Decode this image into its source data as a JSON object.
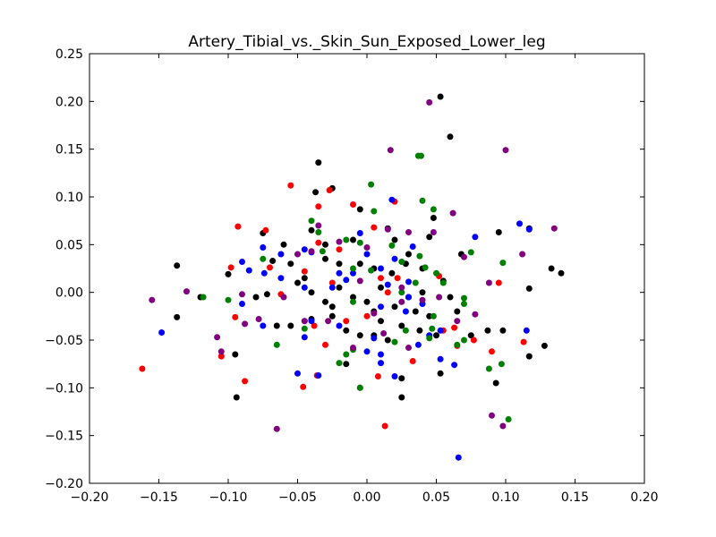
{
  "chart_data": {
    "type": "scatter",
    "title": "Artery_Tibial_vs._Skin_Sun_Exposed_Lower_leg",
    "xlabel": "",
    "ylabel": "",
    "xlim": [
      -0.2,
      0.2
    ],
    "ylim": [
      -0.2,
      0.25
    ],
    "x_ticks": [
      "−0.20",
      "−0.15",
      "−0.10",
      "−0.05",
      "0.00",
      "0.05",
      "0.10",
      "0.15",
      "0.20"
    ],
    "x_tick_values": [
      -0.2,
      -0.15,
      -0.1,
      -0.05,
      0.0,
      0.05,
      0.1,
      0.15,
      0.2
    ],
    "y_ticks": [
      "−0.20",
      "−0.15",
      "−0.10",
      "−0.05",
      "0.00",
      "0.05",
      "0.10",
      "0.15",
      "0.20",
      "0.25"
    ],
    "y_tick_values": [
      -0.2,
      -0.15,
      -0.1,
      -0.05,
      0.0,
      0.05,
      0.1,
      0.15,
      0.2,
      0.25
    ],
    "grid": false,
    "series": [
      {
        "color": "#000000",
        "points": [
          [
            0.053,
            0.205
          ],
          [
            0.06,
            0.163
          ],
          [
            -0.035,
            0.136
          ],
          [
            -0.025,
            0.109
          ],
          [
            -0.037,
            0.105
          ],
          [
            -0.137,
            0.028
          ],
          [
            -0.1,
            0.019
          ],
          [
            -0.075,
            0.062
          ],
          [
            -0.06,
            0.05
          ],
          [
            -0.04,
            0.065
          ],
          [
            -0.03,
            0.05
          ],
          [
            -0.01,
            0.055
          ],
          [
            -0.005,
            0.087
          ],
          [
            0.015,
            0.067
          ],
          [
            0.02,
            0.055
          ],
          [
            0.03,
            0.04
          ],
          [
            0.045,
            0.058
          ],
          [
            0.048,
            0.078
          ],
          [
            0.095,
            0.063
          ],
          [
            0.117,
            0.067
          ],
          [
            -0.068,
            0.033
          ],
          [
            -0.055,
            0.03
          ],
          [
            -0.045,
            0.015
          ],
          [
            -0.03,
            0.035
          ],
          [
            -0.02,
            0.03
          ],
          [
            -0.005,
            0.03
          ],
          [
            0.005,
            0.025
          ],
          [
            0.018,
            0.02
          ],
          [
            0.028,
            0.03
          ],
          [
            0.04,
            0.025
          ],
          [
            0.055,
            0.012
          ],
          [
            0.068,
            0.04
          ],
          [
            0.133,
            0.025
          ],
          [
            0.14,
            0.02
          ],
          [
            0.117,
            0.004
          ],
          [
            -0.12,
            -0.005
          ],
          [
            -0.08,
            -0.005
          ],
          [
            -0.072,
            -0.002
          ],
          [
            -0.05,
            0.01
          ],
          [
            -0.04,
            0.0
          ],
          [
            -0.03,
            -0.01
          ],
          [
            -0.02,
            0.005
          ],
          [
            -0.01,
            -0.005
          ],
          [
            0.0,
            -0.01
          ],
          [
            0.005,
            -0.02
          ],
          [
            0.01,
            0.005
          ],
          [
            0.02,
            -0.015
          ],
          [
            0.03,
            -0.005
          ],
          [
            0.035,
            -0.02
          ],
          [
            0.045,
            -0.025
          ],
          [
            -0.137,
            -0.026
          ],
          [
            -0.095,
            -0.065
          ],
          [
            -0.065,
            -0.035
          ],
          [
            -0.055,
            -0.035
          ],
          [
            -0.04,
            -0.028
          ],
          [
            -0.025,
            -0.025
          ],
          [
            -0.015,
            -0.04
          ],
          [
            -0.005,
            -0.045
          ],
          [
            0.005,
            -0.045
          ],
          [
            0.015,
            -0.05
          ],
          [
            0.025,
            -0.035
          ],
          [
            0.038,
            -0.04
          ],
          [
            0.05,
            -0.045
          ],
          [
            0.065,
            -0.02
          ],
          [
            0.075,
            -0.045
          ],
          [
            0.087,
            -0.04
          ],
          [
            0.098,
            -0.04
          ],
          [
            0.117,
            -0.067
          ],
          [
            0.128,
            -0.056
          ],
          [
            -0.094,
            -0.11
          ],
          [
            -0.015,
            -0.075
          ],
          [
            -0.005,
            -0.1
          ],
          [
            0.025,
            -0.09
          ],
          [
            0.025,
            -0.11
          ],
          [
            0.053,
            -0.085
          ],
          [
            0.093,
            -0.095
          ],
          [
            0.01,
            -0.03
          ],
          [
            -0.025,
            -0.015
          ],
          [
            0.04,
            0.0
          ],
          [
            0.06,
            -0.005
          ]
        ]
      },
      {
        "color": "#ff0000",
        "points": [
          [
            -0.055,
            0.112
          ],
          [
            -0.027,
            0.107
          ],
          [
            -0.035,
            0.09
          ],
          [
            -0.01,
            0.092
          ],
          [
            0.02,
            0.095
          ],
          [
            -0.093,
            0.069
          ],
          [
            -0.073,
            0.065
          ],
          [
            -0.035,
            0.052
          ],
          [
            0.005,
            0.068
          ],
          [
            -0.098,
            0.026
          ],
          [
            -0.045,
            0.022
          ],
          [
            -0.07,
            0.026
          ],
          [
            0.01,
            0.015
          ],
          [
            0.022,
            0.015
          ],
          [
            0.052,
            0.017
          ],
          [
            0.095,
            0.01
          ],
          [
            -0.062,
            -0.002
          ],
          [
            -0.025,
            0.01
          ],
          [
            0.015,
            0.0
          ],
          [
            -0.095,
            -0.026
          ],
          [
            -0.045,
            -0.03
          ],
          [
            -0.038,
            -0.035
          ],
          [
            -0.015,
            -0.03
          ],
          [
            0.0,
            -0.025
          ],
          [
            0.055,
            -0.04
          ],
          [
            0.063,
            -0.037
          ],
          [
            0.077,
            -0.05
          ],
          [
            0.113,
            -0.052
          ],
          [
            -0.03,
            -0.055
          ],
          [
            0.033,
            -0.072
          ],
          [
            -0.105,
            -0.067
          ],
          [
            -0.088,
            -0.093
          ],
          [
            -0.036,
            -0.087
          ],
          [
            0.008,
            -0.088
          ],
          [
            -0.046,
            -0.099
          ],
          [
            0.013,
            -0.14
          ],
          [
            -0.162,
            -0.08
          ],
          [
            0.065,
            -0.056
          ],
          [
            0.09,
            -0.062
          ],
          [
            -0.02,
            0.045
          ]
        ]
      },
      {
        "color": "#0000ff",
        "points": [
          [
            0.018,
            0.097
          ],
          [
            -0.075,
            0.047
          ],
          [
            -0.09,
            0.032
          ],
          [
            -0.085,
            0.023
          ],
          [
            -0.062,
            0.04
          ],
          [
            -0.045,
            0.045
          ],
          [
            -0.04,
            0.042
          ],
          [
            -0.02,
            0.02
          ],
          [
            -0.015,
            0.013
          ],
          [
            -0.005,
            0.062
          ],
          [
            0.0,
            0.04
          ],
          [
            0.01,
            0.025
          ],
          [
            0.02,
            0.035
          ],
          [
            0.033,
            0.048
          ],
          [
            0.078,
            0.058
          ],
          [
            0.11,
            0.072
          ],
          [
            0.117,
            0.066
          ],
          [
            -0.062,
            0.015
          ],
          [
            -0.074,
            0.02
          ],
          [
            -0.045,
            0.005
          ],
          [
            -0.025,
            0.005
          ],
          [
            0.015,
            0.008
          ],
          [
            0.03,
            0.011
          ],
          [
            0.04,
            -0.012
          ],
          [
            -0.09,
            -0.012
          ],
          [
            -0.075,
            -0.035
          ],
          [
            -0.04,
            -0.03
          ],
          [
            -0.02,
            -0.035
          ],
          [
            0.01,
            -0.015
          ],
          [
            0.028,
            -0.02
          ],
          [
            0.045,
            -0.045
          ],
          [
            0.053,
            -0.04
          ],
          [
            0.037,
            -0.055
          ],
          [
            0.005,
            -0.048
          ],
          [
            -0.045,
            -0.047
          ],
          [
            -0.148,
            -0.042
          ],
          [
            -0.05,
            -0.085
          ],
          [
            -0.035,
            -0.087
          ],
          [
            0.0,
            -0.062
          ],
          [
            0.01,
            -0.065
          ],
          [
            0.01,
            -0.074
          ],
          [
            0.02,
            -0.088
          ],
          [
            0.053,
            -0.07
          ],
          [
            0.063,
            -0.076
          ],
          [
            0.115,
            -0.04
          ],
          [
            0.066,
            -0.173
          ],
          [
            0.03,
            -0.005
          ],
          [
            -0.01,
            0.02
          ]
        ]
      },
      {
        "color": "#008000",
        "points": [
          [
            0.037,
            0.143
          ],
          [
            0.039,
            0.143
          ],
          [
            0.003,
            0.113
          ],
          [
            0.04,
            0.096
          ],
          [
            0.005,
            0.085
          ],
          [
            0.048,
            0.087
          ],
          [
            -0.04,
            0.075
          ],
          [
            -0.035,
            0.063
          ],
          [
            -0.015,
            0.055
          ],
          [
            -0.005,
            0.052
          ],
          [
            0.018,
            0.049
          ],
          [
            0.038,
            0.038
          ],
          [
            0.075,
            0.042
          ],
          [
            -0.075,
            0.035
          ],
          [
            -0.032,
            0.043
          ],
          [
            -0.01,
            0.025
          ],
          [
            0.003,
            0.023
          ],
          [
            0.025,
            0.032
          ],
          [
            0.042,
            0.026
          ],
          [
            0.05,
            0.02
          ],
          [
            0.098,
            0.031
          ],
          [
            -0.118,
            -0.005
          ],
          [
            -0.1,
            -0.008
          ],
          [
            0.025,
            0.0
          ],
          [
            0.035,
            0.01
          ],
          [
            0.055,
            0.01
          ],
          [
            0.07,
            -0.006
          ],
          [
            0.07,
            -0.012
          ],
          [
            -0.065,
            -0.055
          ],
          [
            -0.045,
            -0.038
          ],
          [
            -0.01,
            -0.06
          ],
          [
            0.02,
            -0.052
          ],
          [
            0.028,
            -0.04
          ],
          [
            0.047,
            -0.038
          ],
          [
            0.065,
            -0.055
          ],
          [
            0.07,
            -0.05
          ],
          [
            -0.02,
            -0.074
          ],
          [
            -0.015,
            -0.065
          ],
          [
            -0.005,
            -0.1
          ],
          [
            0.045,
            -0.048
          ],
          [
            0.088,
            -0.08
          ],
          [
            0.097,
            -0.075
          ],
          [
            0.102,
            -0.133
          ],
          [
            0.048,
            -0.025
          ],
          [
            -0.01,
            -0.01
          ]
        ]
      },
      {
        "color": "#800080",
        "points": [
          [
            0.045,
            0.199
          ],
          [
            0.017,
            0.149
          ],
          [
            0.1,
            0.149
          ],
          [
            0.062,
            0.083
          ],
          [
            -0.035,
            0.07
          ],
          [
            0.015,
            0.066
          ],
          [
            0.03,
            0.063
          ],
          [
            0.048,
            0.063
          ],
          [
            -0.02,
            0.053
          ],
          [
            0.0,
            0.047
          ],
          [
            -0.04,
            0.043
          ],
          [
            -0.05,
            0.04
          ],
          [
            0.07,
            0.037
          ],
          [
            0.112,
            0.04
          ],
          [
            0.135,
            0.067
          ],
          [
            -0.13,
            0.001
          ],
          [
            -0.155,
            -0.008
          ],
          [
            -0.09,
            -0.002
          ],
          [
            -0.005,
            0.012
          ],
          [
            0.025,
            0.005
          ],
          [
            0.04,
            -0.008
          ],
          [
            0.052,
            -0.005
          ],
          [
            0.088,
            0.01
          ],
          [
            0.025,
            -0.01
          ],
          [
            -0.088,
            -0.033
          ],
          [
            -0.078,
            -0.028
          ],
          [
            -0.045,
            -0.03
          ],
          [
            -0.028,
            -0.03
          ],
          [
            -0.01,
            -0.058
          ],
          [
            0.03,
            -0.058
          ],
          [
            0.078,
            -0.023
          ],
          [
            0.012,
            -0.043
          ],
          [
            -0.108,
            -0.047
          ],
          [
            -0.105,
            -0.062
          ],
          [
            0.09,
            -0.129
          ],
          [
            0.098,
            -0.14
          ],
          [
            -0.065,
            -0.143
          ],
          [
            0.065,
            -0.03
          ],
          [
            -0.06,
            -0.005
          ],
          [
            0.005,
            -0.022
          ]
        ]
      }
    ]
  }
}
